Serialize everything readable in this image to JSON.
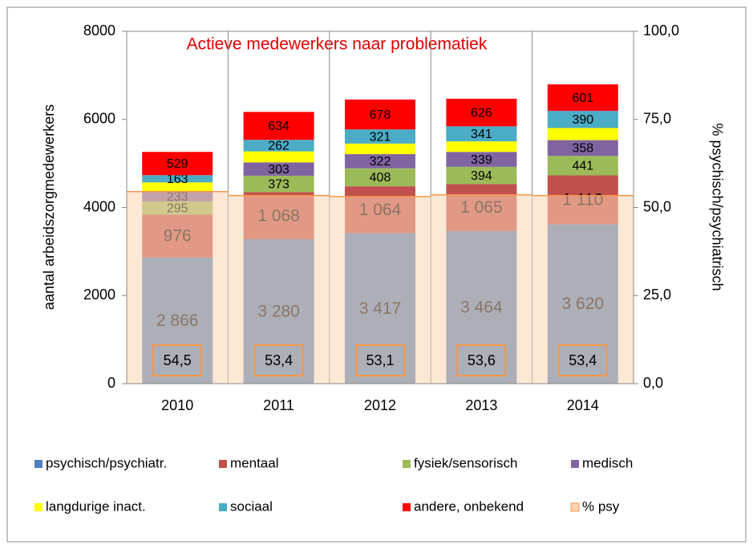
{
  "chart_data": {
    "type": "bar",
    "stacked": true,
    "title": "Actieve medewerkers naar problematiek",
    "y_label": "aantal arbeidszorgmedewerkers",
    "y2_label": "% psychisch/psychiatrisch",
    "categories": [
      "2010",
      "2011",
      "2012",
      "2013",
      "2014"
    ],
    "ylim": [
      0,
      8000
    ],
    "yticks": [
      0,
      2000,
      4000,
      6000,
      8000
    ],
    "y2lim": [
      0,
      100
    ],
    "y2ticks": [
      {
        "value": 0,
        "label": "0,0"
      },
      {
        "value": 25,
        "label": "25,0"
      },
      {
        "value": 50,
        "label": "50,0"
      },
      {
        "value": 75,
        "label": "75,0"
      },
      {
        "value": 100,
        "label": "100,0"
      }
    ],
    "legend": "bottom",
    "series": [
      {
        "name": "psychisch/psychiatr.",
        "color": "#4f81bd",
        "values": [
          2866,
          3280,
          3417,
          3464,
          3620
        ],
        "value_labels": [
          "2 866",
          "3 280",
          "3 417",
          "3 464",
          "3 620"
        ]
      },
      {
        "name": "mentaal",
        "color": "#c0504d",
        "values": [
          976,
          1068,
          1064,
          1065,
          1110
        ],
        "value_labels": [
          "976",
          "1 068",
          "1 064",
          "1 065",
          "1 110"
        ]
      },
      {
        "name": "fysiek/sensorisch",
        "color": "#9bbb59",
        "values": [
          295,
          373,
          408,
          394,
          441
        ]
      },
      {
        "name": "medisch",
        "color": "#8064a2",
        "values": [
          233,
          303,
          322,
          339,
          358
        ]
      },
      {
        "name": "langdurige inact.",
        "color": "#ffff00",
        "values": [
          200,
          250,
          240,
          240,
          275
        ],
        "data_labels": false
      },
      {
        "name": "sociaal",
        "color": "#4bacc6",
        "values": [
          163,
          262,
          321,
          341,
          390
        ]
      },
      {
        "name": "andere, onbekend",
        "color": "#ff0000",
        "values": [
          529,
          634,
          678,
          626,
          601
        ]
      },
      {
        "name": "% psy",
        "color": "#fbd5b5",
        "edge_color": "#f79646",
        "type": "area",
        "axis": "y2",
        "values": [
          54.5,
          53.4,
          53.1,
          53.6,
          53.4
        ],
        "value_labels": [
          "54,5",
          "53,4",
          "53,1",
          "53,6",
          "53,4"
        ]
      }
    ]
  }
}
